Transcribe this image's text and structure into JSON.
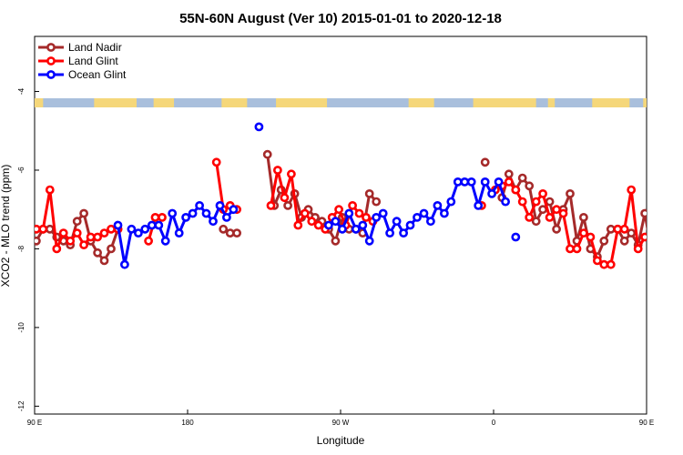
{
  "chart_data": {
    "type": "line",
    "title": "55N-60N August (Ver 10)   2015-01-01 to 2020-12-18",
    "xlabel": "Longitude",
    "ylabel": "XCO2 - MLO trend (ppm)",
    "xlim": [
      90,
      450
    ],
    "ylim": [
      -12.2,
      -2.6
    ],
    "x_ticks": [
      {
        "value": 90,
        "label": "90 E"
      },
      {
        "value": 180,
        "label": "180"
      },
      {
        "value": 270,
        "label": "90 W"
      },
      {
        "value": 360,
        "label": "0"
      },
      {
        "value": 450,
        "label": "90 E"
      },
      {
        "value": 540,
        "label": "180"
      }
    ],
    "y_ticks": [
      -4,
      -6,
      -8,
      -10,
      -12
    ],
    "legend": [
      {
        "name": "Land Nadir",
        "color": "#a52a2a"
      },
      {
        "name": "Land Glint",
        "color": "#ff0000"
      },
      {
        "name": "Ocean Glint",
        "color": "#0000ff"
      }
    ],
    "colors": {
      "land_nadir": "#a52a2a",
      "land_glint": "#ff0000",
      "ocean_glint": "#0000ff",
      "land_strip": "#f5d77a",
      "ocean_strip": "#a9bfdc"
    },
    "series": [
      {
        "name": "Land Nadir",
        "color": "#a52a2a",
        "segments": [
          [
            [
              91,
              -7.8
            ],
            [
              95,
              -7.5
            ],
            [
              99,
              -7.5
            ],
            [
              103,
              -7.7
            ],
            [
              107,
              -7.8
            ],
            [
              111,
              -7.9
            ],
            [
              115,
              -7.3
            ],
            [
              119,
              -7.1
            ],
            [
              123,
              -7.8
            ],
            [
              127,
              -8.1
            ],
            [
              131,
              -8.3
            ],
            [
              135,
              -8.0
            ],
            [
              139,
              -7.5
            ]
          ],
          [
            [
              201,
              -7.5
            ],
            [
              205,
              -7.6
            ],
            [
              209,
              -7.6
            ]
          ],
          [
            [
              227,
              -5.6
            ],
            [
              231,
              -6.9
            ],
            [
              235,
              -6.5
            ],
            [
              239,
              -6.9
            ],
            [
              243,
              -6.6
            ],
            [
              247,
              -7.2
            ],
            [
              251,
              -7.0
            ],
            [
              255,
              -7.2
            ],
            [
              259,
              -7.3
            ],
            [
              263,
              -7.5
            ],
            [
              267,
              -7.8
            ],
            [
              271,
              -7.2
            ],
            [
              275,
              -7.5
            ],
            [
              279,
              -7.5
            ],
            [
              283,
              -7.6
            ],
            [
              287,
              -6.6
            ],
            [
              291,
              -6.8
            ]
          ],
          [
            [
              355,
              -5.8
            ]
          ],
          [
            [
              365,
              -6.7
            ],
            [
              369,
              -6.1
            ],
            [
              373,
              -6.5
            ],
            [
              377,
              -6.2
            ],
            [
              381,
              -6.4
            ],
            [
              385,
              -7.3
            ],
            [
              389,
              -7.0
            ],
            [
              393,
              -6.8
            ],
            [
              397,
              -7.5
            ],
            [
              401,
              -7.0
            ],
            [
              405,
              -6.6
            ],
            [
              409,
              -7.8
            ],
            [
              413,
              -7.2
            ],
            [
              417,
              -8.0
            ],
            [
              421,
              -8.2
            ],
            [
              425,
              -7.8
            ],
            [
              429,
              -7.5
            ],
            [
              433,
              -7.5
            ],
            [
              437,
              -7.8
            ],
            [
              441,
              -7.6
            ],
            [
              445,
              -7.9
            ],
            [
              449,
              -7.1
            ],
            [
              453,
              -8.1
            ],
            [
              457,
              -8.3
            ],
            [
              461,
              -7.8
            ],
            [
              465,
              -7.5
            ],
            [
              469,
              -7.4
            ],
            [
              473,
              -7.3
            ]
          ]
        ]
      },
      {
        "name": "Land Glint",
        "color": "#ff0000",
        "segments": [
          [
            [
              91,
              -7.5
            ],
            [
              95,
              -7.5
            ],
            [
              99,
              -6.5
            ],
            [
              103,
              -8.0
            ],
            [
              107,
              -7.6
            ],
            [
              111,
              -7.8
            ],
            [
              115,
              -7.6
            ],
            [
              119,
              -7.9
            ],
            [
              123,
              -7.7
            ],
            [
              127,
              -7.7
            ],
            [
              131,
              -7.6
            ],
            [
              135,
              -7.5
            ],
            [
              139,
              -7.5
            ]
          ],
          [
            [
              157,
              -7.8
            ],
            [
              161,
              -7.2
            ],
            [
              165,
              -7.2
            ]
          ],
          [
            [
              197,
              -5.8
            ],
            [
              201,
              -7.0
            ],
            [
              205,
              -6.9
            ],
            [
              209,
              -7.0
            ]
          ],
          [
            [
              229,
              -6.9
            ],
            [
              233,
              -6.0
            ],
            [
              237,
              -6.7
            ],
            [
              241,
              -6.1
            ],
            [
              245,
              -7.4
            ],
            [
              249,
              -7.1
            ],
            [
              253,
              -7.3
            ],
            [
              257,
              -7.4
            ],
            [
              261,
              -7.5
            ],
            [
              265,
              -7.2
            ],
            [
              269,
              -7.0
            ],
            [
              273,
              -7.4
            ],
            [
              277,
              -6.9
            ],
            [
              281,
              -7.1
            ],
            [
              285,
              -7.2
            ],
            [
              289,
              -7.3
            ]
          ],
          [
            [
              353,
              -6.9
            ]
          ],
          [
            [
              361,
              -6.5
            ],
            [
              365,
              -6.4
            ],
            [
              369,
              -6.3
            ],
            [
              373,
              -6.5
            ],
            [
              377,
              -6.8
            ],
            [
              381,
              -7.2
            ],
            [
              385,
              -6.8
            ],
            [
              389,
              -6.6
            ],
            [
              393,
              -7.2
            ],
            [
              397,
              -7.0
            ],
            [
              401,
              -7.1
            ],
            [
              405,
              -8.0
            ],
            [
              409,
              -8.0
            ],
            [
              413,
              -7.6
            ],
            [
              417,
              -7.7
            ],
            [
              421,
              -8.3
            ],
            [
              425,
              -8.4
            ],
            [
              429,
              -8.4
            ],
            [
              433,
              -7.5
            ],
            [
              437,
              -7.5
            ],
            [
              441,
              -6.5
            ],
            [
              445,
              -8.0
            ],
            [
              449,
              -7.7
            ],
            [
              453,
              -7.9
            ],
            [
              457,
              -7.3
            ],
            [
              461,
              -7.7
            ],
            [
              465,
              -7.7
            ],
            [
              469,
              -7.6
            ]
          ],
          [
            [
              479,
              -7.2
            ],
            [
              483,
              -7.2
            ]
          ]
        ]
      },
      {
        "name": "Ocean Glint",
        "color": "#0000ff",
        "segments": [
          [
            [
              139,
              -7.4
            ],
            [
              143,
              -8.4
            ],
            [
              147,
              -7.5
            ],
            [
              151,
              -7.6
            ],
            [
              155,
              -7.5
            ],
            [
              159,
              -7.4
            ],
            [
              163,
              -7.4
            ],
            [
              167,
              -7.8
            ],
            [
              171,
              -7.1
            ],
            [
              175,
              -7.6
            ],
            [
              179,
              -7.2
            ],
            [
              183,
              -7.1
            ],
            [
              187,
              -6.9
            ],
            [
              191,
              -7.1
            ],
            [
              195,
              -7.3
            ],
            [
              199,
              -6.9
            ],
            [
              203,
              -7.2
            ],
            [
              207,
              -7.0
            ]
          ],
          [
            [
              222,
              -4.9
            ]
          ],
          [
            [
              263,
              -7.4
            ],
            [
              267,
              -7.3
            ],
            [
              271,
              -7.5
            ],
            [
              275,
              -7.1
            ],
            [
              279,
              -7.5
            ],
            [
              283,
              -7.4
            ],
            [
              287,
              -7.8
            ],
            [
              291,
              -7.2
            ],
            [
              295,
              -7.1
            ],
            [
              299,
              -7.6
            ],
            [
              303,
              -7.3
            ],
            [
              307,
              -7.6
            ],
            [
              311,
              -7.4
            ],
            [
              315,
              -7.2
            ],
            [
              319,
              -7.1
            ],
            [
              323,
              -7.3
            ],
            [
              327,
              -6.9
            ],
            [
              331,
              -7.1
            ],
            [
              335,
              -6.8
            ],
            [
              339,
              -6.3
            ],
            [
              343,
              -6.3
            ],
            [
              347,
              -6.3
            ],
            [
              351,
              -6.9
            ],
            [
              355,
              -6.3
            ],
            [
              359,
              -6.6
            ],
            [
              363,
              -6.3
            ],
            [
              367,
              -6.8
            ]
          ],
          [
            [
              373,
              -7.7
            ]
          ],
          [
            [
              461,
              -7.4
            ],
            [
              465,
              -8.4
            ],
            [
              469,
              -7.5
            ],
            [
              473,
              -7.5
            ],
            [
              477,
              -7.4
            ],
            [
              481,
              -7.4
            ],
            [
              485,
              -7.4
            ],
            [
              489,
              -7.8
            ],
            [
              493,
              -7.1
            ]
          ]
        ]
      }
    ]
  }
}
